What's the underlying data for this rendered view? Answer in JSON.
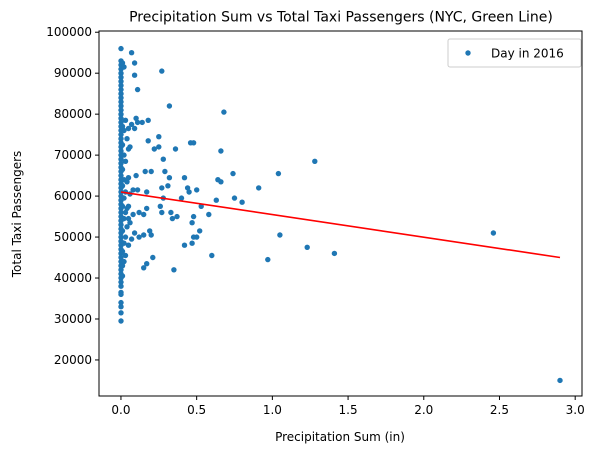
{
  "chart_data": {
    "type": "scatter",
    "title": "Precipitation Sum vs Total Taxi Passengers (NYC, Green Line)",
    "xlabel": "Precipitation Sum (in)",
    "ylabel": "Total Taxi Passengers",
    "xlim": [
      -0.145,
      3.045
    ],
    "ylim": [
      11200,
      100300
    ],
    "xticks": [
      0.0,
      0.5,
      1.0,
      1.5,
      2.0,
      2.5,
      3.0
    ],
    "xtick_labels": [
      "0.0",
      "0.5",
      "1.0",
      "1.5",
      "2.0",
      "2.5",
      "3.0"
    ],
    "yticks": [
      20000,
      30000,
      40000,
      50000,
      60000,
      70000,
      80000,
      90000,
      100000
    ],
    "ytick_labels": [
      "20000",
      "30000",
      "40000",
      "50000",
      "60000",
      "70000",
      "80000",
      "90000",
      "100000"
    ],
    "grid": false,
    "legend": {
      "position": "top-right",
      "entries": [
        "Day in 2016"
      ]
    },
    "colors": {
      "points": "#1f77b4",
      "trend": "#ff0000"
    },
    "series": [
      {
        "name": "Day in 2016",
        "kind": "scatter",
        "points": [
          [
            0.0,
            96000
          ],
          [
            0.0,
            93000
          ],
          [
            0.0,
            92000
          ],
          [
            0.0,
            91000
          ],
          [
            0.0,
            90000
          ],
          [
            0.0,
            89000
          ],
          [
            0.0,
            88000
          ],
          [
            0.0,
            87000
          ],
          [
            0.0,
            86000
          ],
          [
            0.0,
            85000
          ],
          [
            0.0,
            84000
          ],
          [
            0.0,
            83000
          ],
          [
            0.0,
            82000
          ],
          [
            0.0,
            81000
          ],
          [
            0.0,
            80000
          ],
          [
            0.0,
            79000
          ],
          [
            0.0,
            78000
          ],
          [
            0.0,
            77000
          ],
          [
            0.0,
            76000
          ],
          [
            0.0,
            75000
          ],
          [
            0.0,
            74000
          ],
          [
            0.0,
            73000
          ],
          [
            0.0,
            72000
          ],
          [
            0.0,
            71000
          ],
          [
            0.0,
            70000
          ],
          [
            0.0,
            69000
          ],
          [
            0.0,
            68000
          ],
          [
            0.0,
            67000
          ],
          [
            0.0,
            66000
          ],
          [
            0.0,
            65000
          ],
          [
            0.0,
            64000
          ],
          [
            0.0,
            63000
          ],
          [
            0.0,
            62000
          ],
          [
            0.0,
            61000
          ],
          [
            0.0,
            60000
          ],
          [
            0.0,
            59000
          ],
          [
            0.0,
            58000
          ],
          [
            0.0,
            57000
          ],
          [
            0.0,
            56000
          ],
          [
            0.0,
            55000
          ],
          [
            0.0,
            54000
          ],
          [
            0.0,
            53000
          ],
          [
            0.0,
            52000
          ],
          [
            0.0,
            51000
          ],
          [
            0.0,
            50000
          ],
          [
            0.0,
            49000
          ],
          [
            0.0,
            48000
          ],
          [
            0.0,
            47000
          ],
          [
            0.0,
            46000
          ],
          [
            0.0,
            45000
          ],
          [
            0.0,
            44000
          ],
          [
            0.0,
            43000
          ],
          [
            0.0,
            42000
          ],
          [
            0.0,
            41000
          ],
          [
            0.0,
            40000
          ],
          [
            0.0,
            39000
          ],
          [
            0.0,
            38000
          ],
          [
            0.0,
            36500
          ],
          [
            0.0,
            36000
          ],
          [
            0.0,
            34000
          ],
          [
            0.0,
            33000
          ],
          [
            0.0,
            31500
          ],
          [
            0.0,
            29500
          ],
          [
            0.01,
            92500
          ],
          [
            0.01,
            77000
          ],
          [
            0.01,
            72500
          ],
          [
            0.01,
            66500
          ],
          [
            0.01,
            62500
          ],
          [
            0.01,
            57500
          ],
          [
            0.01,
            51500
          ],
          [
            0.01,
            46500
          ],
          [
            0.01,
            43000
          ],
          [
            0.01,
            40500
          ],
          [
            0.02,
            91500
          ],
          [
            0.02,
            76000
          ],
          [
            0.02,
            70000
          ],
          [
            0.02,
            64000
          ],
          [
            0.02,
            59500
          ],
          [
            0.02,
            54500
          ],
          [
            0.02,
            48500
          ],
          [
            0.02,
            44000
          ],
          [
            0.03,
            78500
          ],
          [
            0.03,
            68500
          ],
          [
            0.03,
            61000
          ],
          [
            0.03,
            56000
          ],
          [
            0.03,
            50000
          ],
          [
            0.03,
            45500
          ],
          [
            0.04,
            74000
          ],
          [
            0.04,
            63500
          ],
          [
            0.04,
            57000
          ],
          [
            0.04,
            52500
          ],
          [
            0.05,
            76500
          ],
          [
            0.05,
            71500
          ],
          [
            0.05,
            64500
          ],
          [
            0.05,
            57500
          ],
          [
            0.05,
            54500
          ],
          [
            0.05,
            48000
          ],
          [
            0.06,
            72000
          ],
          [
            0.06,
            60500
          ],
          [
            0.06,
            53500
          ],
          [
            0.07,
            95000
          ],
          [
            0.07,
            77500
          ],
          [
            0.07,
            49500
          ],
          [
            0.08,
            61500
          ],
          [
            0.08,
            55500
          ],
          [
            0.09,
            92500
          ],
          [
            0.09,
            89500
          ],
          [
            0.09,
            76500
          ],
          [
            0.09,
            51000
          ],
          [
            0.1,
            79000
          ],
          [
            0.1,
            65000
          ],
          [
            0.11,
            86000
          ],
          [
            0.11,
            78000
          ],
          [
            0.11,
            61500
          ],
          [
            0.12,
            56000
          ],
          [
            0.12,
            50000
          ],
          [
            0.14,
            78000
          ],
          [
            0.15,
            50500
          ],
          [
            0.15,
            55500
          ],
          [
            0.15,
            42500
          ],
          [
            0.16,
            66000
          ],
          [
            0.17,
            61000
          ],
          [
            0.17,
            57000
          ],
          [
            0.17,
            43500
          ],
          [
            0.18,
            78500
          ],
          [
            0.18,
            73500
          ],
          [
            0.19,
            51500
          ],
          [
            0.2,
            66000
          ],
          [
            0.2,
            50500
          ],
          [
            0.21,
            45000
          ],
          [
            0.22,
            71500
          ],
          [
            0.25,
            74500
          ],
          [
            0.25,
            72000
          ],
          [
            0.26,
            57500
          ],
          [
            0.27,
            90500
          ],
          [
            0.27,
            62000
          ],
          [
            0.27,
            56000
          ],
          [
            0.28,
            69000
          ],
          [
            0.28,
            59500
          ],
          [
            0.29,
            66000
          ],
          [
            0.31,
            62500
          ],
          [
            0.32,
            82000
          ],
          [
            0.32,
            64500
          ],
          [
            0.33,
            56000
          ],
          [
            0.34,
            54500
          ],
          [
            0.35,
            42000
          ],
          [
            0.36,
            71500
          ],
          [
            0.37,
            55000
          ],
          [
            0.4,
            59500
          ],
          [
            0.42,
            48000
          ],
          [
            0.42,
            64500
          ],
          [
            0.44,
            62000
          ],
          [
            0.45,
            61000
          ],
          [
            0.46,
            73000
          ],
          [
            0.47,
            48500
          ],
          [
            0.47,
            53500
          ],
          [
            0.48,
            73000
          ],
          [
            0.48,
            55000
          ],
          [
            0.48,
            50000
          ],
          [
            0.5,
            50000
          ],
          [
            0.5,
            61500
          ],
          [
            0.52,
            51500
          ],
          [
            0.53,
            57500
          ],
          [
            0.58,
            55500
          ],
          [
            0.6,
            45500
          ],
          [
            0.63,
            59000
          ],
          [
            0.64,
            64000
          ],
          [
            0.66,
            63500
          ],
          [
            0.66,
            71000
          ],
          [
            0.68,
            80500
          ],
          [
            0.74,
            65500
          ],
          [
            0.75,
            59500
          ],
          [
            0.8,
            58500
          ],
          [
            0.91,
            62000
          ],
          [
            0.97,
            44500
          ],
          [
            1.04,
            65500
          ],
          [
            1.05,
            50500
          ],
          [
            1.23,
            47500
          ],
          [
            1.28,
            68500
          ],
          [
            1.41,
            46000
          ],
          [
            2.46,
            51000
          ],
          [
            2.9,
            15000
          ]
        ]
      },
      {
        "kind": "line",
        "points": [
          [
            0.0,
            61000
          ],
          [
            2.9,
            45000
          ]
        ]
      }
    ]
  }
}
